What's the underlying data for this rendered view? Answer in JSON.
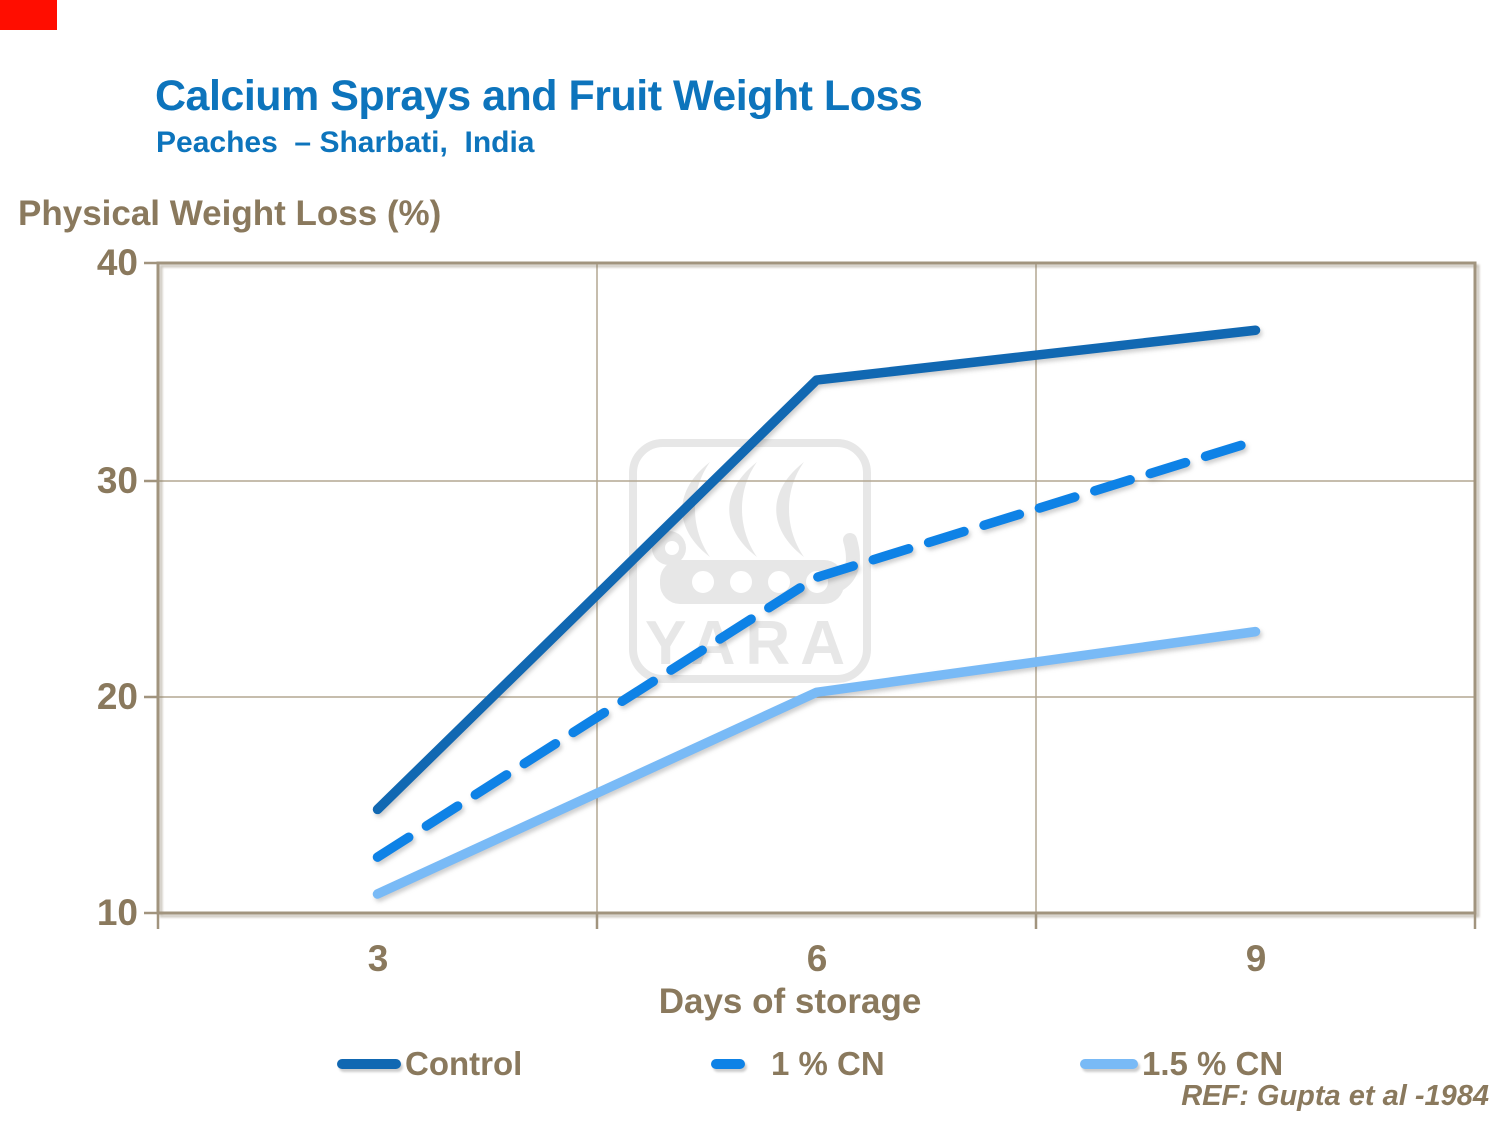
{
  "page": {
    "background": "#FFFFFF"
  },
  "corner_marker": {
    "color": "#FF0D00"
  },
  "header": {
    "title": "Calcium Sprays and Fruit Weight Loss",
    "subtitle": "Peaches  – Sharbati,  India"
  },
  "watermark": {
    "text": "YARA"
  },
  "footnote": {
    "ref": "REF: Gupta et al -1984"
  },
  "colors": {
    "title_blue": "#0D74BC",
    "text_brown": "#8A795D",
    "frame_brown": "#A1947E",
    "gridline_brown": "#B3A792",
    "watermark_gray": "#E7E7E7",
    "control_blue": "#1168B2",
    "cn1_blue": "#0E82E6",
    "cn15_blue": "#79BAF6"
  },
  "chart_data": {
    "type": "line",
    "title": "Calcium Sprays and Fruit Weight Loss",
    "subtitle": "Peaches – Sharbati, India",
    "xlabel": "Days of storage",
    "ylabel": "Physical Weight Loss (%)",
    "categories": [
      3,
      6,
      9
    ],
    "xtick_labels": [
      "3",
      "6",
      "9"
    ],
    "ytick_vals": [
      40,
      30,
      20,
      10
    ],
    "ytick_labels": [
      "40",
      "30",
      "20",
      "10"
    ],
    "ylim": [
      10,
      40
    ],
    "grid": "horizontal major gridlines every 10; vertical gridlines at category boundaries",
    "legend_position": "bottom",
    "series": [
      {
        "name": "Control",
        "values": [
          14.8,
          34.6,
          36.9
        ],
        "color": "#1168B2",
        "style": "solid"
      },
      {
        "name": "1 % CN",
        "values": [
          12.6,
          25.5,
          31.8
        ],
        "color": "#0E82E6",
        "style": "dashed"
      },
      {
        "name": "1.5 % CN",
        "values": [
          10.9,
          20.2,
          23.0
        ],
        "color": "#79BAF6",
        "style": "solid"
      }
    ]
  }
}
